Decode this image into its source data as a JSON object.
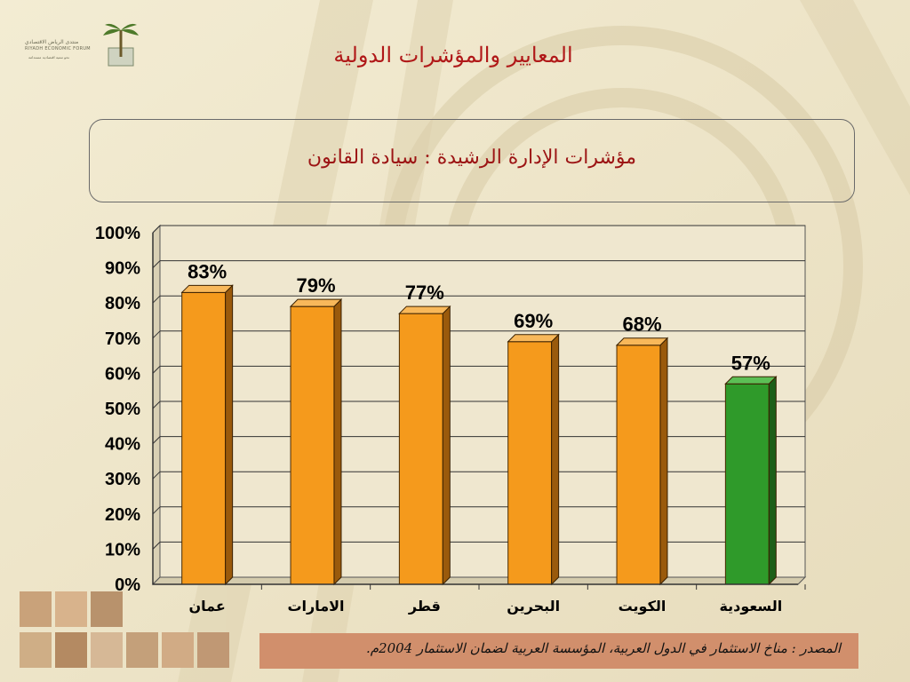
{
  "logo": {
    "name_ar": "منتدى الرياض الاقتصادي",
    "name_en": "RIYADH ECONOMIC FORUM",
    "tagline_ar": "نحو تنمية اقتصادية مستدامة"
  },
  "slide": {
    "title": "المعايير والمؤشرات الدولية",
    "subtitle": "مؤشرات الإدارة الرشيدة : سيادة القانون"
  },
  "source": {
    "text": "المصدر : مناخ الاستثمار في الدول العربية، المؤسسة العربية لضمان الاستثمار 2004م."
  },
  "colors": {
    "bar_orange": "#f59a1c",
    "bar_green": "#2f9a2a",
    "title_red": "#b01818",
    "source_bg": "#d18f6c"
  },
  "chart_data": {
    "type": "bar",
    "categories": [
      "عمان",
      "الامارات",
      "قطر",
      "البحرين",
      "الكويت",
      "السعودية"
    ],
    "values": [
      83,
      79,
      77,
      69,
      68,
      57
    ],
    "value_labels": [
      "83%",
      "79%",
      "77%",
      "69%",
      "68%",
      "57%"
    ],
    "highlight_index": 5,
    "ylim": [
      0,
      100
    ],
    "yticks": [
      "0%",
      "10%",
      "20%",
      "30%",
      "40%",
      "50%",
      "60%",
      "70%",
      "80%",
      "90%",
      "100%"
    ],
    "grid": true,
    "style": "3d-bars"
  }
}
